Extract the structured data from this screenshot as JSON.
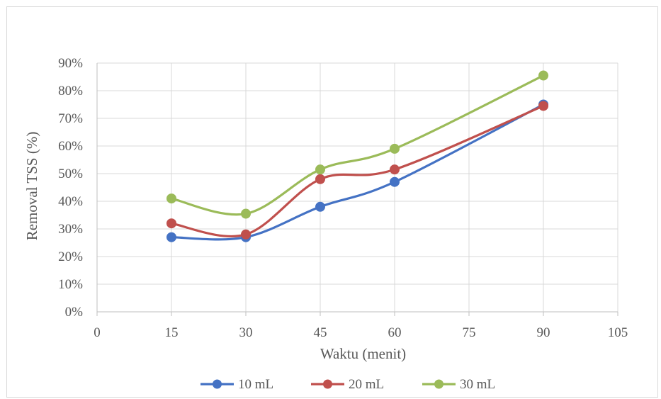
{
  "chart_data": {
    "type": "line",
    "title": "",
    "xlabel": "Waktu (menit)",
    "ylabel": "Removal TSS (%)",
    "xlim": [
      0,
      105
    ],
    "ylim": [
      0,
      0.9
    ],
    "x_ticks": [
      "0",
      "15",
      "30",
      "45",
      "60",
      "75",
      "90",
      "105"
    ],
    "y_ticks": [
      "0%",
      "10%",
      "20%",
      "30%",
      "40%",
      "50%",
      "60%",
      "70%",
      "80%",
      "90%"
    ],
    "grid": true,
    "smooth": true,
    "legend_position": "bottom",
    "x": [
      15,
      30,
      45,
      60,
      90
    ],
    "series": [
      {
        "name": "10 mL",
        "color": "#4472c4",
        "values": [
          0.27,
          0.27,
          0.38,
          0.47,
          0.75
        ]
      },
      {
        "name": "20 mL",
        "color": "#c0504d",
        "values": [
          0.32,
          0.28,
          0.48,
          0.515,
          0.745
        ]
      },
      {
        "name": "30 mL",
        "color": "#9bbb59",
        "values": [
          0.41,
          0.355,
          0.515,
          0.59,
          0.855
        ]
      }
    ]
  }
}
